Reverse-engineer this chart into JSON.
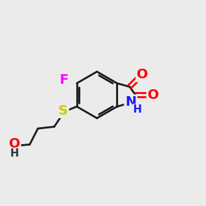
{
  "bg_color": "#ebebeb",
  "bond_color": "#1a1a1a",
  "bond_width": 2.0,
  "atom_colors": {
    "O": "#ff0000",
    "N": "#1a1aff",
    "S": "#cccc00",
    "F": "#ff00ff",
    "C": "#1a1a1a",
    "H": "#1a1a1a"
  },
  "font_size_atom": 14,
  "font_size_H": 11
}
